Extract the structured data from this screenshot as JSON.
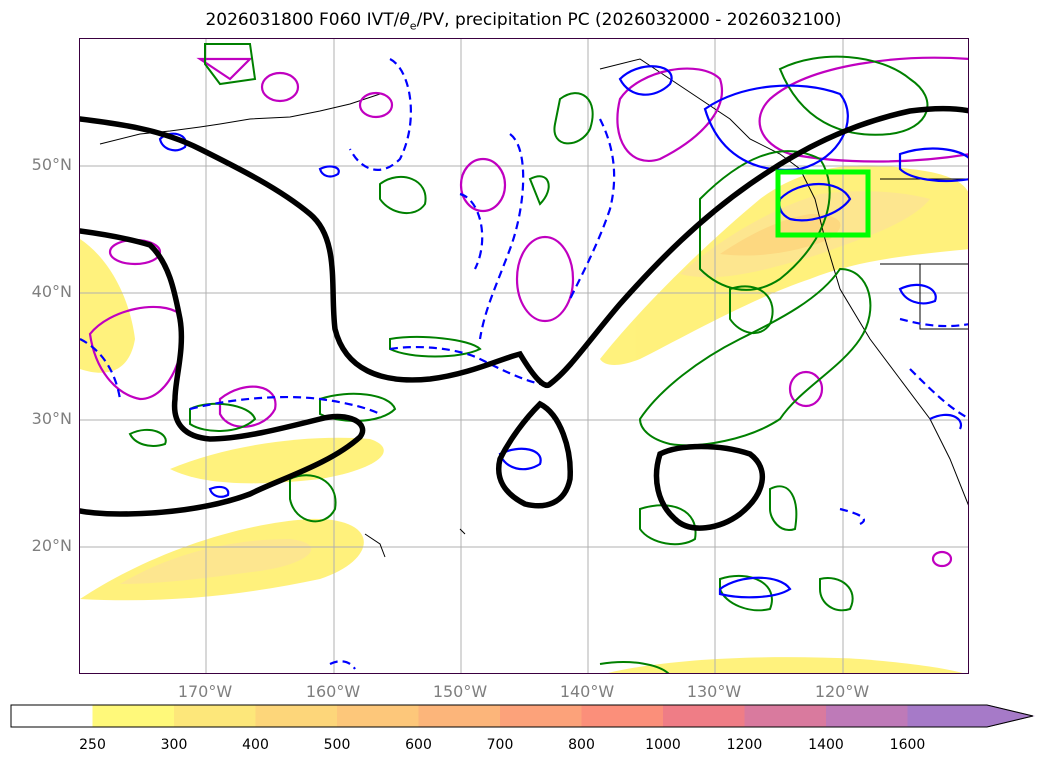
{
  "title": {
    "prefix": "2026031800 F060 IVT/",
    "theta": "θ",
    "theta_sub": "e",
    "suffix": "/PV, precipitation PC (2026032000 - 2026032100)"
  },
  "lat_labels": [
    "50°N",
    "40°N",
    "30°N",
    "20°N"
  ],
  "lon_labels": [
    "170°W",
    "160°W",
    "150°W",
    "140°W",
    "130°W",
    "120°W"
  ],
  "colorbar": {
    "ticks": [
      "250",
      "300",
      "400",
      "500",
      "600",
      "700",
      "800",
      "1000",
      "1200",
      "1400",
      "1600"
    ],
    "colors": [
      "#ffffff",
      "#fff97a",
      "#fde77a",
      "#fdd67a",
      "#fdc77a",
      "#fcb57a",
      "#fca27a",
      "#fb8f7a",
      "#ef7d86",
      "#d97a9e",
      "#be7ab8",
      "#a67ac8"
    ],
    "extend": "max"
  },
  "contour_colors": {
    "ivt_fill": "#fff176",
    "theta_e": "#000000",
    "pv_positive": "#0000ff",
    "precip": "#008000",
    "magenta": "#c000c0",
    "box": "#00ff00"
  }
}
